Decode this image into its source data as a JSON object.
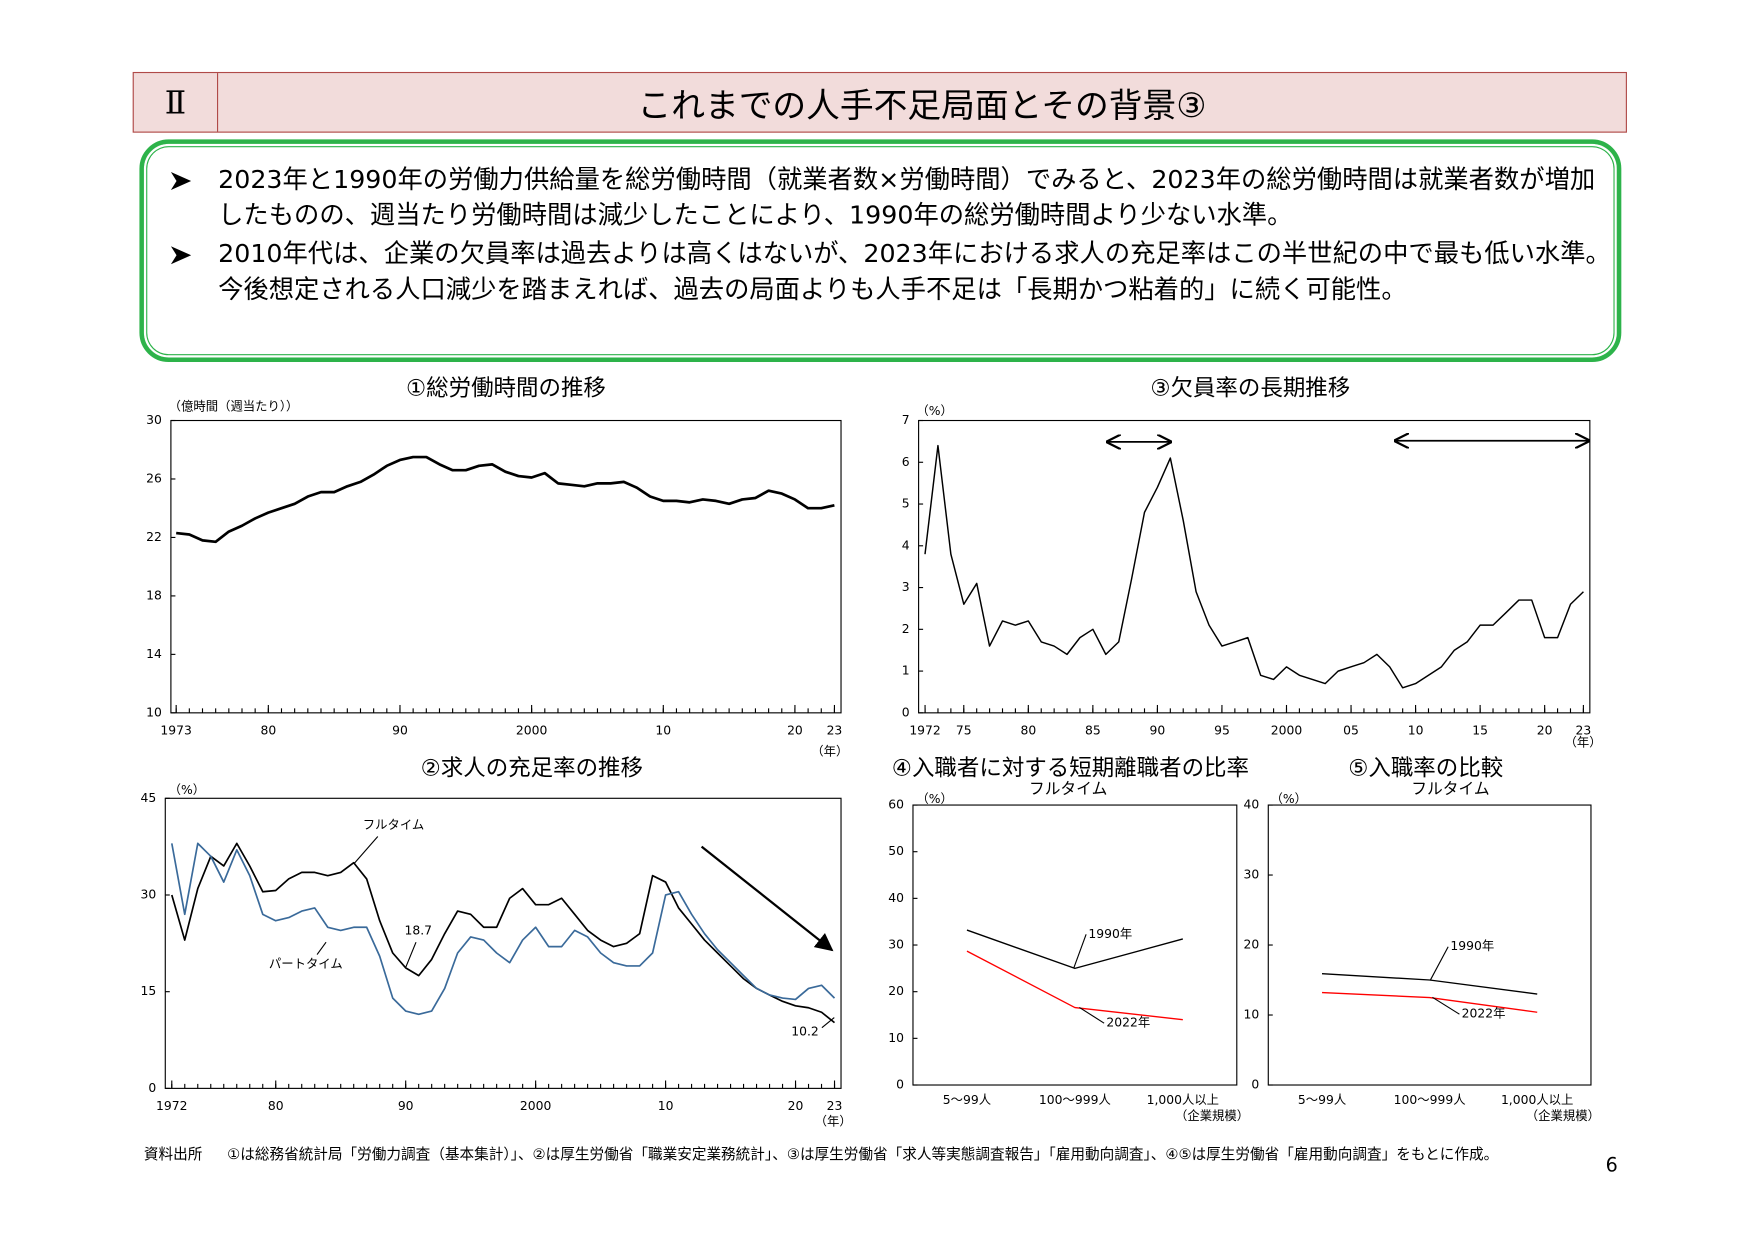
{
  "header": {
    "section": "Ⅱ",
    "title": "これまでの人手不足局面とその背景③"
  },
  "bullets": [
    "2023年と1990年の労働力供給量を総労働時間（就業者数×労働時間）でみると、2023年の総労働時間は就業者数が増加したものの、週当たり労働時間は減少したことにより、1990年の総労働時間より少ない水準。",
    "2010年代は、企業の欠員率は過去よりは高くはないが、2023年における求人の充足率はこの半世紀の中で最も低い水準。今後想定される人口減少を踏まえれば、過去の局面よりも人手不足は「長期かつ粘着的」に続く可能性。"
  ],
  "chart_data": [
    {
      "type": "line",
      "title": "①総労働時間の推移",
      "y_label": "（億時間（週当たり））",
      "x_label": "（年）",
      "color": "#000000",
      "x": [
        1973,
        1974,
        1975,
        1976,
        1977,
        1978,
        1979,
        1980,
        1981,
        1982,
        1983,
        1984,
        1985,
        1986,
        1987,
        1988,
        1989,
        1990,
        1991,
        1992,
        1993,
        1994,
        1995,
        1996,
        1997,
        1998,
        1999,
        2000,
        2001,
        2002,
        2003,
        2004,
        2005,
        2006,
        2007,
        2008,
        2009,
        2010,
        2011,
        2012,
        2013,
        2014,
        2015,
        2016,
        2017,
        2018,
        2019,
        2020,
        2021,
        2022,
        2023
      ],
      "values": [
        22.3,
        22.2,
        21.8,
        21.7,
        22.4,
        22.8,
        23.3,
        23.7,
        24.0,
        24.3,
        24.8,
        25.1,
        25.1,
        25.5,
        25.8,
        26.3,
        26.9,
        27.3,
        27.5,
        27.5,
        27.0,
        26.6,
        26.6,
        26.9,
        27.0,
        26.5,
        26.2,
        26.1,
        26.4,
        25.7,
        25.6,
        25.5,
        25.7,
        25.7,
        25.8,
        25.4,
        24.8,
        24.5,
        24.5,
        24.4,
        24.6,
        24.5,
        24.3,
        24.6,
        24.7,
        25.2,
        25.0,
        24.6,
        24.0,
        24.0,
        24.2
      ],
      "xlim": [
        1972.6,
        2023.5
      ],
      "xticks": [
        1973,
        {
          "value": 1980,
          "label": "80"
        },
        {
          "value": 1990,
          "label": "90"
        },
        2000,
        {
          "value": 2010,
          "label": "10"
        },
        {
          "value": 2020,
          "label": "20"
        },
        {
          "value": 2023,
          "label": "23"
        }
      ],
      "ylim": [
        10,
        30
      ],
      "yticks": [
        10,
        14,
        18,
        22,
        26,
        30
      ]
    },
    {
      "type": "line",
      "title": "②求人の充足率の推移",
      "y_label": "（%）",
      "x_label": "（年）",
      "x": [
        1972,
        1973,
        1974,
        1975,
        1976,
        1977,
        1978,
        1979,
        1980,
        1981,
        1982,
        1983,
        1984,
        1985,
        1986,
        1987,
        1988,
        1989,
        1990,
        1991,
        1992,
        1993,
        1994,
        1995,
        1996,
        1997,
        1998,
        1999,
        2000,
        2001,
        2002,
        2003,
        2004,
        2005,
        2006,
        2007,
        2008,
        2009,
        2010,
        2011,
        2012,
        2013,
        2014,
        2015,
        2016,
        2017,
        2018,
        2019,
        2020,
        2021,
        2022,
        2023
      ],
      "series": [
        {
          "name": "フルタイム",
          "color": "#000000",
          "values": [
            30,
            23,
            31,
            36,
            34.5,
            38,
            34.5,
            30.5,
            30.7,
            32.5,
            33.5,
            33.5,
            33,
            33.5,
            35,
            32.5,
            26,
            21,
            18.7,
            17.5,
            20,
            24,
            27.5,
            27,
            25,
            25,
            29.5,
            31,
            28.5,
            28.5,
            29.5,
            27,
            24.5,
            23,
            22,
            22.5,
            24,
            33,
            32,
            28,
            25.5,
            23,
            21,
            19,
            17,
            15.5,
            14.5,
            13.5,
            12.8,
            12.5,
            11.8,
            10.2
          ]
        },
        {
          "name": "パートタイム",
          "color": "#3a6a9a",
          "values": [
            38,
            27,
            38,
            36,
            32,
            37,
            33,
            27,
            26,
            26.5,
            27.5,
            28,
            25,
            24.5,
            25,
            25,
            20.5,
            14,
            12,
            11.5,
            12,
            15.5,
            21,
            23.5,
            23,
            21,
            19.5,
            23,
            25,
            22,
            22,
            24.5,
            23.5,
            21,
            19.5,
            19,
            19,
            21,
            30,
            30.5,
            27,
            24,
            21.5,
            19.5,
            17.5,
            15.5,
            14.5,
            14,
            13.8,
            15.5,
            16,
            14
          ]
        }
      ],
      "xlim": [
        1971.5,
        2023.5
      ],
      "xticks": [
        1972,
        {
          "value": 1980,
          "label": "80"
        },
        {
          "value": 1990,
          "label": "90"
        },
        2000,
        {
          "value": 2010,
          "label": "10"
        },
        {
          "value": 2020,
          "label": "20"
        },
        {
          "value": 2023,
          "label": "23"
        }
      ],
      "ylim": [
        0,
        45
      ],
      "yticks": [
        0,
        15,
        30,
        45
      ]
    },
    {
      "type": "line",
      "title": "③欠員率の長期推移",
      "y_label": "（%）",
      "x_label": "（年）",
      "color": "#000000",
      "x": [
        1972,
        1973,
        1974,
        1975,
        1976,
        1977,
        1978,
        1979,
        1980,
        1981,
        1982,
        1983,
        1984,
        1985,
        1986,
        1987,
        1988,
        1989,
        1990,
        1991,
        1992,
        1993,
        1994,
        1995,
        1996,
        1997,
        1998,
        1999,
        2000,
        2001,
        2002,
        2003,
        2004,
        2005,
        2006,
        2007,
        2008,
        2009,
        2010,
        2011,
        2012,
        2013,
        2014,
        2015,
        2016,
        2017,
        2018,
        2019,
        2020,
        2021,
        2022,
        2023
      ],
      "values": [
        3.8,
        6.4,
        3.8,
        2.6,
        3.1,
        1.6,
        2.2,
        2.1,
        2.2,
        1.7,
        1.6,
        1.4,
        1.8,
        2.0,
        1.4,
        1.7,
        3.2,
        4.8,
        5.4,
        6.1,
        4.6,
        2.9,
        2.1,
        1.6,
        1.7,
        1.8,
        0.9,
        0.8,
        1.1,
        0.9,
        0.8,
        0.7,
        1.0,
        1.1,
        1.2,
        1.4,
        1.1,
        0.6,
        0.7,
        0.9,
        1.1,
        1.5,
        1.7,
        2.1,
        2.1,
        2.4,
        2.7,
        2.7,
        1.8,
        1.8,
        2.6,
        2.9
      ],
      "xlim": [
        1971.5,
        2023.5
      ],
      "xticks": [
        1972,
        {
          "value": 1975,
          "label": "75"
        },
        {
          "value": 1980,
          "label": "80"
        },
        {
          "value": 1985,
          "label": "85"
        },
        {
          "value": 1990,
          "label": "90"
        },
        {
          "value": 1995,
          "label": "95"
        },
        2000,
        {
          "value": 2005,
          "label": "05"
        },
        {
          "value": 2010,
          "label": "10"
        },
        {
          "value": 2015,
          "label": "15"
        },
        {
          "value": 2020,
          "label": "20"
        },
        {
          "value": 2023,
          "label": "23"
        }
      ],
      "ylim": [
        0,
        7
      ],
      "yticks": [
        0,
        1,
        2,
        3,
        4,
        5,
        6,
        7
      ]
    },
    {
      "type": "line",
      "title": "④入職者に対する短期離職者の比率",
      "subtitle": "フルタイム",
      "y_label": "（%）",
      "x_label": "（企業規模）",
      "categories": [
        "5～99人",
        "100～999人",
        "1,000人以上"
      ],
      "series": [
        {
          "name": "1990年",
          "color": "#000000",
          "values": [
            33.2,
            25,
            31.3
          ]
        },
        {
          "name": "2022年",
          "color": "#ff0000",
          "values": [
            28.7,
            16.6,
            14.0
          ]
        }
      ],
      "ylim": [
        0,
        60
      ],
      "yticks": [
        0,
        10,
        20,
        30,
        40,
        50,
        60
      ]
    },
    {
      "type": "line",
      "title": "⑤入職率の比較",
      "subtitle": "フルタイム",
      "y_label": "（%）",
      "x_label": "（企業規模）",
      "categories": [
        "5～99人",
        "100～999人",
        "1,000人以上"
      ],
      "series": [
        {
          "name": "1990年",
          "color": "#000000",
          "values": [
            15.9,
            15,
            13
          ]
        },
        {
          "name": "2022年",
          "color": "#ff0000",
          "values": [
            13.2,
            12.5,
            10.4
          ]
        }
      ],
      "ylim": [
        0,
        40
      ],
      "yticks": [
        0,
        10,
        20,
        30,
        40
      ]
    }
  ],
  "source": {
    "label": "資料出所",
    "text": "①は総務省統計局「労働力調査（基本集計）」、②は厚生労働省「職業安定業務統計」、③は厚生労働省「求人等実態調査報告」「雇用動向調査」、④⑤は厚生労働省「雇用動向調査」をもとに作成。"
  },
  "page_number": 6
}
